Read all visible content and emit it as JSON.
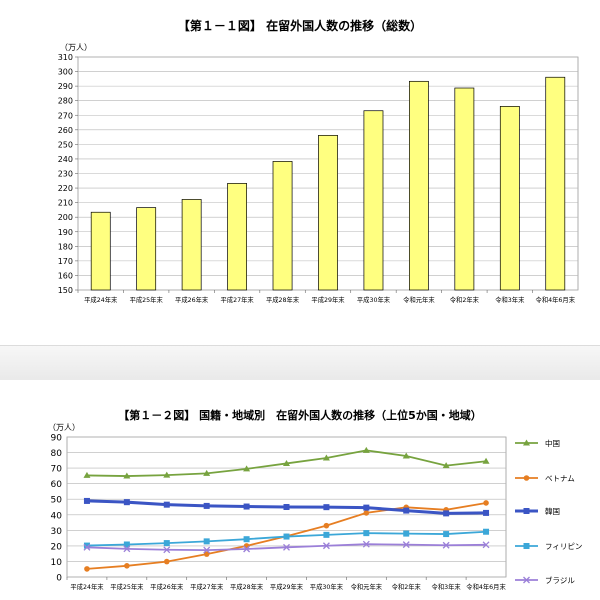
{
  "chart_data": [
    {
      "type": "bar",
      "title": "【第１－１図】 在留外国人数の推移（総数）",
      "ylabel": "（万人）",
      "xlabel": "",
      "categories": [
        "平成24年末",
        "平成25年末",
        "平成26年末",
        "平成27年末",
        "平成28年末",
        "平成29年末",
        "平成30年末",
        "令和元年末",
        "令和2年末",
        "令和3年末",
        "令和4年6月末"
      ],
      "values": [
        203.4,
        206.6,
        212.2,
        223.2,
        238.3,
        256.2,
        273.1,
        293.3,
        288.7,
        276.1,
        296.1
      ],
      "ylim": [
        150,
        310
      ],
      "yticks": [
        150,
        160,
        170,
        180,
        190,
        200,
        210,
        220,
        230,
        240,
        250,
        260,
        270,
        280,
        290,
        300,
        310
      ],
      "bar_color": "#ffff80",
      "bar_edge": "#000000",
      "grid": true,
      "legend": "none"
    },
    {
      "type": "line",
      "title": "【第１－２図】 国籍・地域別　在留外国人数の推移（上位5か国・地域）",
      "ylabel": "（万人）",
      "xlabel": "",
      "categories": [
        "平成24年末",
        "平成25年末",
        "平成26年末",
        "平成27年末",
        "平成28年末",
        "平成29年末",
        "平成30年末",
        "令和元年末",
        "令和2年末",
        "令和3年末",
        "令和4年6月末"
      ],
      "ylim": [
        0,
        90
      ],
      "yticks": [
        0,
        10,
        20,
        30,
        40,
        50,
        60,
        70,
        80,
        90
      ],
      "grid": true,
      "legend": "right",
      "series": [
        {
          "name": "中国",
          "color": "#77a33f",
          "marker": "triangle",
          "values": [
            65.3,
            64.9,
            65.5,
            66.6,
            69.5,
            73.0,
            76.5,
            81.4,
            77.8,
            71.6,
            74.4
          ]
        },
        {
          "name": "ベトナム",
          "color": "#e67e22",
          "marker": "circle",
          "values": [
            5.2,
            7.2,
            9.9,
            14.7,
            20.0,
            26.2,
            33.0,
            41.2,
            44.8,
            43.2,
            47.6
          ]
        },
        {
          "name": "韓国",
          "color": "#3b55c4",
          "marker": "square",
          "values": [
            48.9,
            48.1,
            46.5,
            45.7,
            45.3,
            45.0,
            44.9,
            44.6,
            42.7,
            40.9,
            41.2
          ]
        },
        {
          "name": "フィリピン",
          "color": "#3ba7d8",
          "marker": "square",
          "values": [
            20.2,
            20.9,
            21.8,
            22.9,
            24.3,
            26.0,
            27.1,
            28.2,
            27.9,
            27.6,
            29.1
          ]
        },
        {
          "name": "ブラジル",
          "color": "#9b7fd8",
          "marker": "x",
          "values": [
            19.1,
            18.1,
            17.5,
            17.3,
            18.0,
            19.1,
            20.1,
            21.1,
            20.8,
            20.4,
            20.7
          ]
        }
      ]
    }
  ]
}
